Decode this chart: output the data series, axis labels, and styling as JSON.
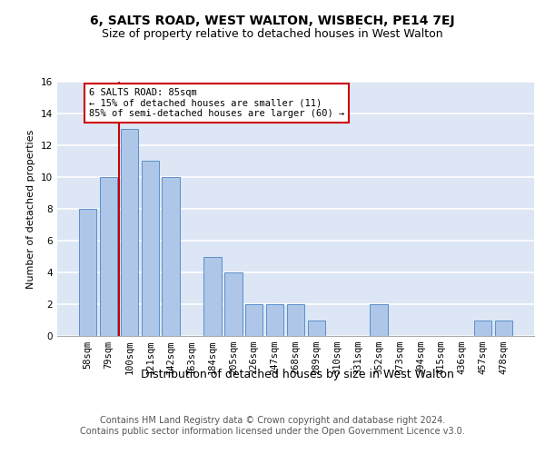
{
  "title": "6, SALTS ROAD, WEST WALTON, WISBECH, PE14 7EJ",
  "subtitle": "Size of property relative to detached houses in West Walton",
  "xlabel": "Distribution of detached houses by size in West Walton",
  "ylabel": "Number of detached properties",
  "categories": [
    "58sqm",
    "79sqm",
    "100sqm",
    "121sqm",
    "142sqm",
    "163sqm",
    "184sqm",
    "205sqm",
    "226sqm",
    "247sqm",
    "268sqm",
    "289sqm",
    "310sqm",
    "331sqm",
    "352sqm",
    "373sqm",
    "394sqm",
    "415sqm",
    "436sqm",
    "457sqm",
    "478sqm"
  ],
  "values": [
    8,
    10,
    13,
    11,
    10,
    0,
    5,
    4,
    2,
    2,
    2,
    1,
    0,
    0,
    2,
    0,
    0,
    0,
    0,
    1,
    1
  ],
  "bar_color": "#aec6e8",
  "bar_edge_color": "#5b8fc9",
  "annotation_text": "6 SALTS ROAD: 85sqm\n← 15% of detached houses are smaller (11)\n85% of semi-detached houses are larger (60) →",
  "annotation_box_color": "#ffffff",
  "annotation_box_edge_color": "#cc0000",
  "red_line_color": "#cc0000",
  "ylim": [
    0,
    16
  ],
  "yticks": [
    0,
    2,
    4,
    6,
    8,
    10,
    12,
    14,
    16
  ],
  "background_color": "#dce6f5",
  "footer_line1": "Contains HM Land Registry data © Crown copyright and database right 2024.",
  "footer_line2": "Contains public sector information licensed under the Open Government Licence v3.0.",
  "title_fontsize": 10,
  "subtitle_fontsize": 9,
  "xlabel_fontsize": 9,
  "ylabel_fontsize": 8,
  "tick_fontsize": 7.5,
  "footer_fontsize": 7
}
